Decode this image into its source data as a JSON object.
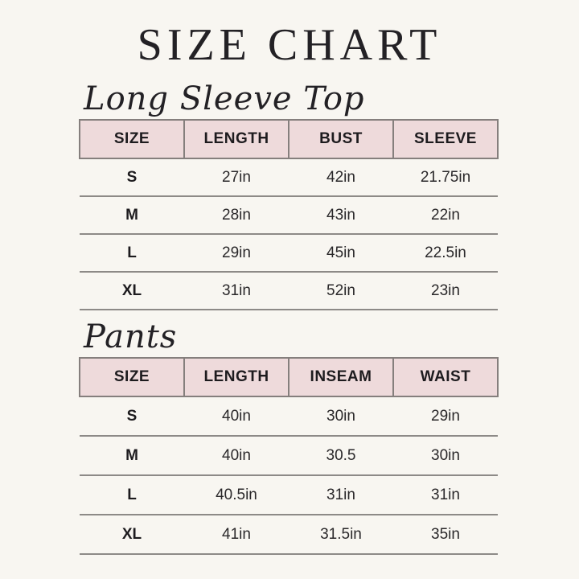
{
  "page": {
    "title": "SIZE CHART",
    "background_color": "#f8f6f1",
    "header_fill_color": "#eedadb",
    "line_color": "#8d8a87",
    "text_color": "#1d1b1e"
  },
  "sections": [
    {
      "heading": "Long Sleeve Top",
      "table": {
        "headers": [
          "SIZE",
          "LENGTH",
          "BUST",
          "SLEEVE"
        ],
        "rows": [
          [
            "S",
            "27in",
            "42in",
            "21.75in"
          ],
          [
            "M",
            "28in",
            "43in",
            "22in"
          ],
          [
            "L",
            "29in",
            "45in",
            "22.5in"
          ],
          [
            "XL",
            "31in",
            "52in",
            "23in"
          ]
        ]
      }
    },
    {
      "heading": "Pants",
      "table": {
        "headers": [
          "SIZE",
          "LENGTH",
          "INSEAM",
          "WAIST"
        ],
        "rows": [
          [
            "S",
            "40in",
            "30in",
            "29in"
          ],
          [
            "M",
            "40in",
            "30.5",
            "30in"
          ],
          [
            "L",
            "40.5in",
            "31in",
            "31in"
          ],
          [
            "XL",
            "41in",
            "31.5in",
            "35in"
          ]
        ]
      }
    }
  ]
}
